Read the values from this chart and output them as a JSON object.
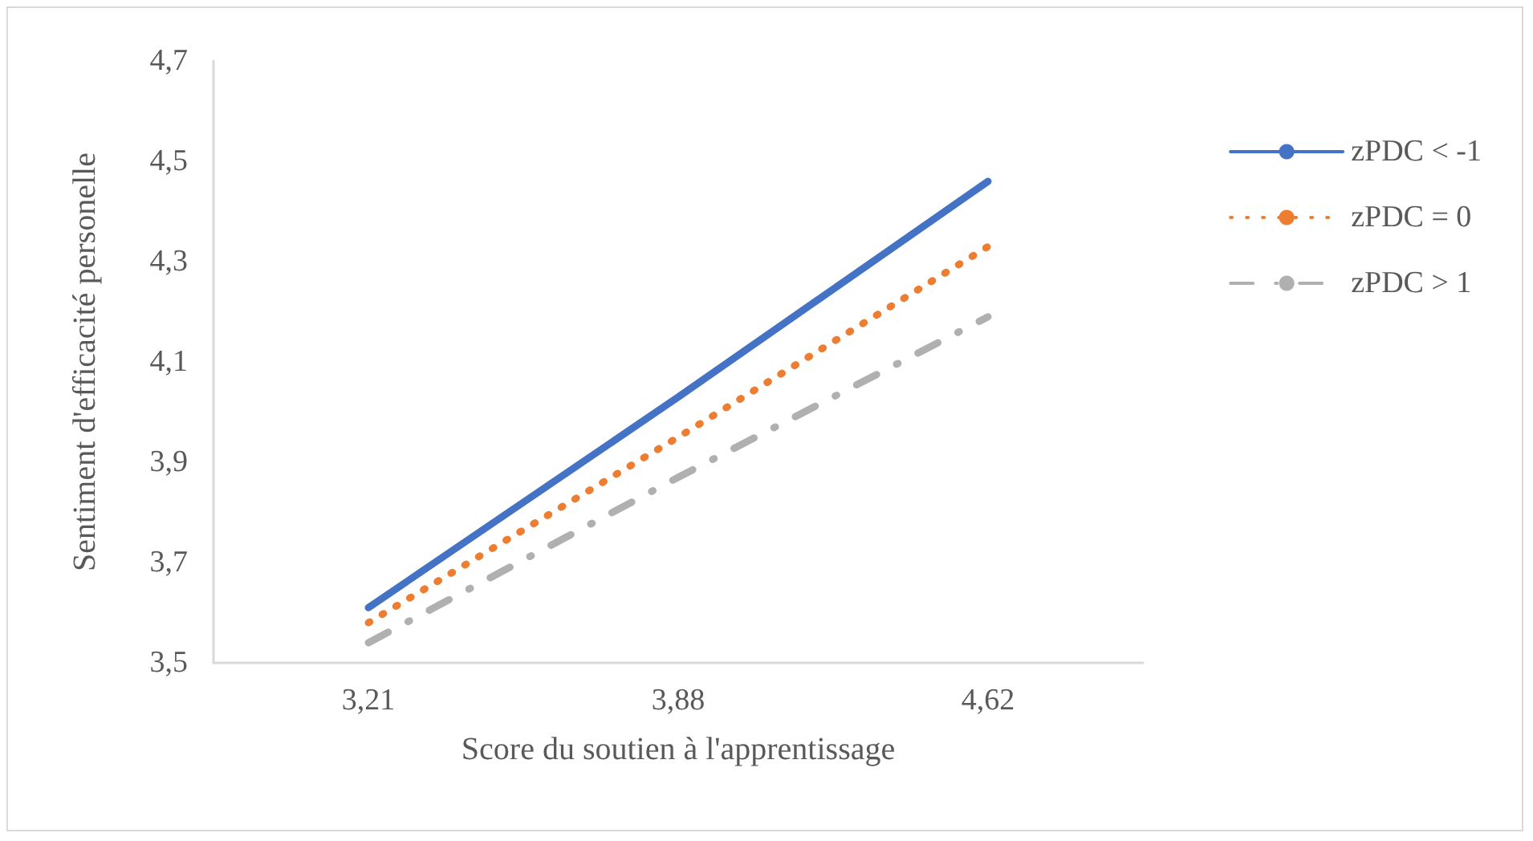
{
  "chart_data": {
    "type": "line",
    "xlabel": "Score du soutien à l'apprentissage",
    "ylabel": "Sentiment d'efficacité personelle",
    "categories": [
      "3,21",
      "3,88",
      "4,62"
    ],
    "series": [
      {
        "name": "zPDC < -1",
        "color": "#4472c4",
        "line_style": "solid",
        "values": [
          3.61,
          4.03,
          4.46
        ]
      },
      {
        "name": "zPDC = 0",
        "color": "#ed7d31",
        "line_style": "dotted",
        "values": [
          3.58,
          3.95,
          4.33
        ]
      },
      {
        "name": "zPDC > 1",
        "color": "#b0b0b0",
        "line_style": "dashed",
        "values": [
          3.54,
          3.87,
          4.19
        ]
      }
    ],
    "ylim": [
      3.5,
      4.7
    ],
    "yticks": [
      {
        "value": 3.5,
        "label": "3,5"
      },
      {
        "value": 3.7,
        "label": "3,7"
      },
      {
        "value": 3.9,
        "label": "3,9"
      },
      {
        "value": 4.1,
        "label": "4,1"
      },
      {
        "value": 4.3,
        "label": "4,3"
      },
      {
        "value": 4.5,
        "label": "4,5"
      },
      {
        "value": 4.7,
        "label": "4,7"
      }
    ],
    "grid": false,
    "legend": "right",
    "marker": "none"
  }
}
